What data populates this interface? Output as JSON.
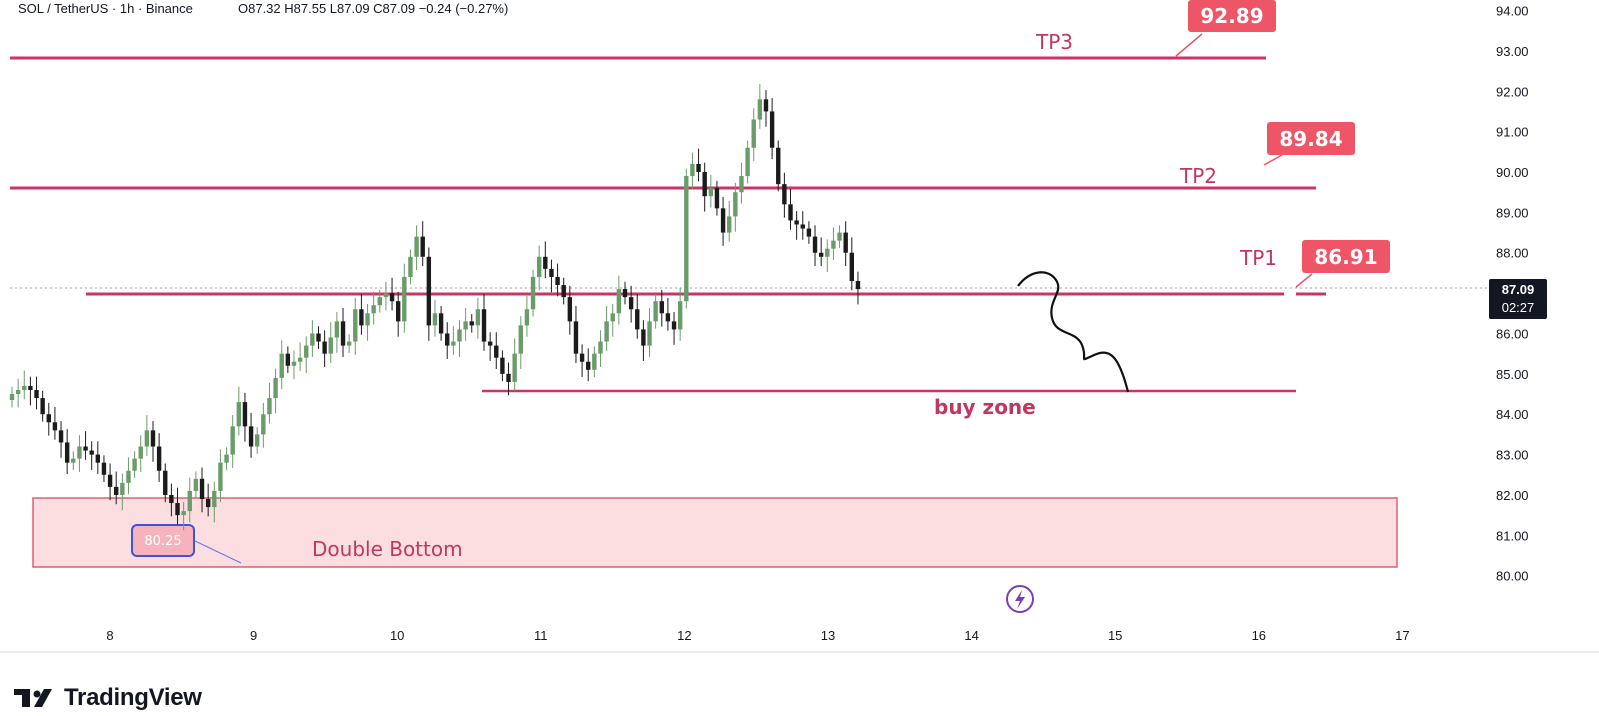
{
  "header": {
    "title": "SOL / TetherUS · 1h · Binance",
    "ohlc": "O87.32  H87.55  L87.09  C87.09  −0.24 (−0.27%)"
  },
  "footer": {
    "brand": "TradingView"
  },
  "colors": {
    "up": "#6a9c6a",
    "down": "#1b1b1b",
    "level": "#cc3366",
    "label_bg": "#ee5566",
    "zone_fill": "#fbd3d6",
    "zone_stroke": "#e06070"
  },
  "chart_data": {
    "type": "candlestick",
    "y_ticks": [
      "94.00",
      "93.00",
      "92.00",
      "91.00",
      "90.00",
      "89.00",
      "88.00",
      "87.00",
      "86.00",
      "85.00",
      "84.00",
      "83.00",
      "82.00",
      "81.00",
      "80.00"
    ],
    "x_ticks": [
      "8",
      "9",
      "10",
      "11",
      "12",
      "13",
      "14",
      "15",
      "16",
      "17"
    ],
    "ylim": [
      79.1,
      94.2
    ],
    "current_price": {
      "value": "87.09",
      "countdown": "02:27"
    },
    "levels": [
      {
        "name": "TP3",
        "label": "TP3",
        "price": 92.89,
        "price_label": "92.89"
      },
      {
        "name": "TP2",
        "label": "TP2",
        "price": 89.84,
        "price_label": "89.84"
      },
      {
        "name": "TP1",
        "label": "TP1",
        "price": 86.91,
        "price_label": "86.91"
      },
      {
        "name": "buy-zone",
        "label": "buy zone",
        "price": 84.55
      }
    ],
    "zone": {
      "label": "Double Bottom",
      "low": 80.25,
      "high": 81.9,
      "low_label": "80.25"
    },
    "closes": [
      84.5,
      84.6,
      84.7,
      84.6,
      84.4,
      84.0,
      83.8,
      83.6,
      83.3,
      82.8,
      82.9,
      83.2,
      83.1,
      83.0,
      82.8,
      82.5,
      82.2,
      82.0,
      82.3,
      82.6,
      82.9,
      83.2,
      83.6,
      83.2,
      82.6,
      82.0,
      81.8,
      81.5,
      81.6,
      82.1,
      82.4,
      81.9,
      81.7,
      82.1,
      82.8,
      83.0,
      83.7,
      84.3,
      83.7,
      83.2,
      83.5,
      84.0,
      84.4,
      84.9,
      85.5,
      85.2,
      85.3,
      85.4,
      85.7,
      86.0,
      85.8,
      85.5,
      85.9,
      86.3,
      85.7,
      85.8,
      86.6,
      86.2,
      86.5,
      86.7,
      86.9,
      87.0,
      86.8,
      86.3,
      87.4,
      87.9,
      88.4,
      87.9,
      86.2,
      86.5,
      86.0,
      85.7,
      85.8,
      86.1,
      86.3,
      86.2,
      86.6,
      85.8,
      85.7,
      85.4,
      85.0,
      84.8,
      85.5,
      86.2,
      86.6,
      87.4,
      87.9,
      87.6,
      87.4,
      87.2,
      86.9,
      86.3,
      85.5,
      85.3,
      85.1,
      85.5,
      85.8,
      86.3,
      86.5,
      87.1,
      86.9,
      86.6,
      86.1,
      85.7,
      86.3,
      86.8,
      86.5,
      86.3,
      86.1,
      86.8,
      89.9,
      90.2,
      90.0,
      89.4,
      89.6,
      89.1,
      88.5,
      88.9,
      89.5,
      89.9,
      90.6,
      91.3,
      91.8,
      91.5,
      90.6,
      89.7,
      89.2,
      88.8,
      88.7,
      88.6,
      88.4,
      88.0,
      87.9,
      88.1,
      88.3,
      88.5,
      88.0,
      87.3,
      87.1
    ]
  }
}
